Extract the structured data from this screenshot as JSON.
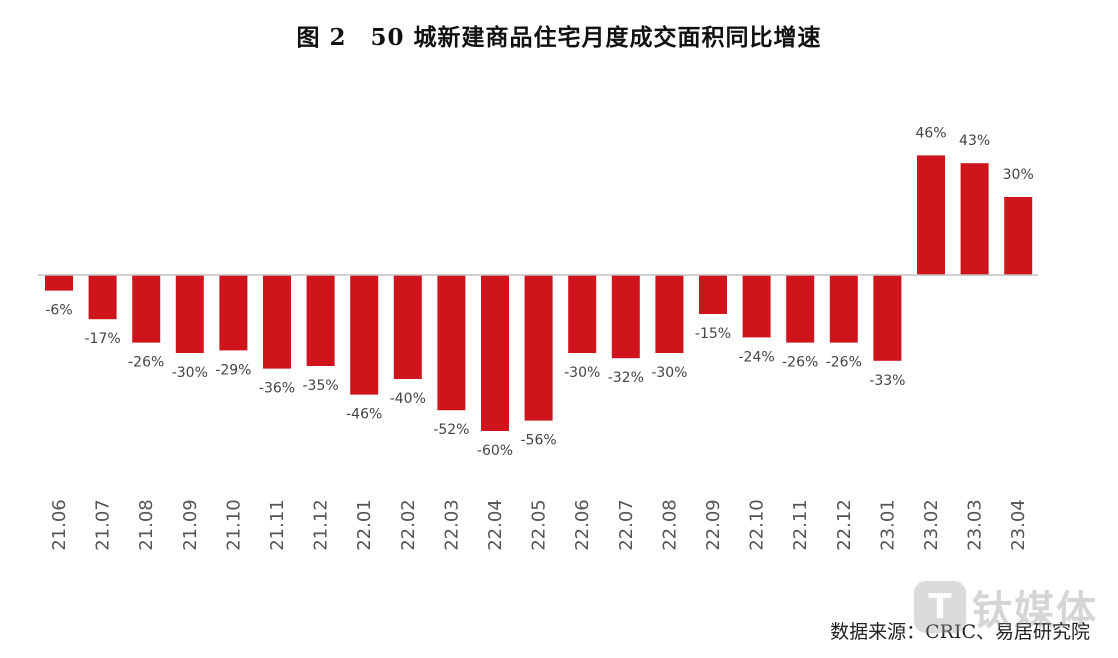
{
  "title": "图 2　50 城新建商品住宅月度成交面积同比增速",
  "source": "数据来源：CRIC、易居研究院",
  "watermark": {
    "icon": "T",
    "text": "钛媒体"
  },
  "colors": {
    "bar": "#d0141b",
    "axis": "#bfbfbf"
  },
  "chart_data": {
    "type": "bar",
    "title": "图 2　50 城新建商品住宅月度成交面积同比增速",
    "xlabel": "",
    "ylabel": "",
    "categories": [
      "21.06",
      "21.07",
      "21.08",
      "21.09",
      "21.10",
      "21.11",
      "21.12",
      "22.01",
      "22.02",
      "22.03",
      "22.04",
      "22.05",
      "22.06",
      "22.07",
      "22.08",
      "22.09",
      "22.10",
      "22.11",
      "22.12",
      "23.01",
      "23.02",
      "23.03",
      "23.04"
    ],
    "values": [
      -6,
      -17,
      -26,
      -30,
      -29,
      -36,
      -35,
      -46,
      -40,
      -52,
      -60,
      -56,
      -30,
      -32,
      -30,
      -15,
      -24,
      -26,
      -26,
      -33,
      46,
      43,
      30
    ],
    "labels": [
      "-6%",
      "-17%",
      "-26%",
      "-30%",
      "-29%",
      "-36%",
      "-35%",
      "-46%",
      "-40%",
      "-52%",
      "-60%",
      "-56%",
      "-30%",
      "-32%",
      "-30%",
      "-15%",
      "-24%",
      "-26%",
      "-26%",
      "-33%",
      "46%",
      "43%",
      "30%"
    ],
    "unit": "%",
    "grid": false,
    "legend": "none"
  }
}
